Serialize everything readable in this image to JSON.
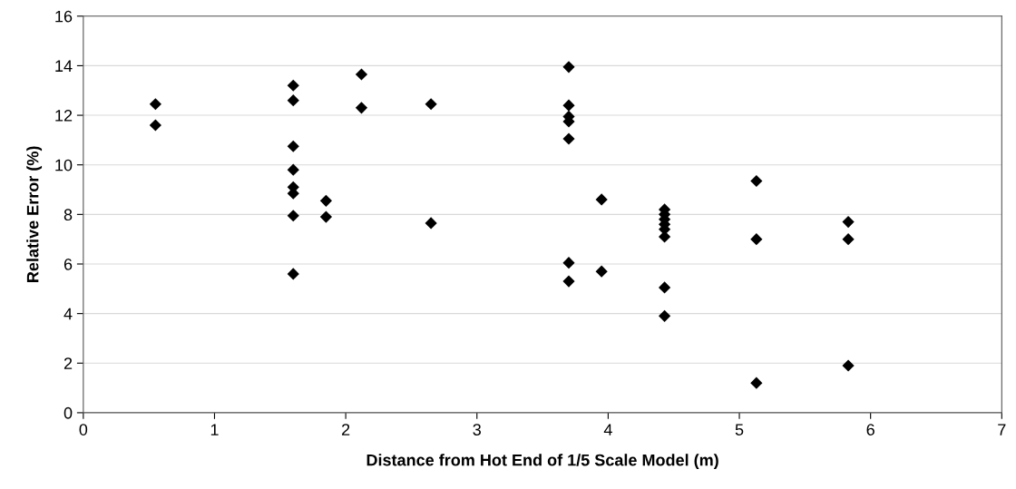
{
  "chart_data": {
    "type": "scatter",
    "xlabel": "Distance from Hot End of 1/5 Scale Model (m)",
    "ylabel": "Relative Error (%)",
    "x": [
      0.55,
      0.55,
      1.6,
      1.6,
      1.6,
      1.6,
      1.6,
      1.6,
      1.6,
      1.6,
      1.85,
      1.85,
      2.12,
      2.12,
      2.65,
      2.65,
      3.7,
      3.7,
      3.7,
      3.7,
      3.7,
      3.7,
      3.7,
      3.95,
      3.95,
      4.43,
      4.43,
      4.43,
      4.43,
      4.43,
      4.43,
      4.43,
      4.43,
      5.13,
      5.13,
      5.13,
      5.83,
      5.83,
      5.83
    ],
    "values": [
      12.45,
      11.6,
      13.2,
      12.6,
      10.75,
      9.8,
      9.1,
      8.85,
      7.95,
      5.6,
      8.55,
      7.9,
      13.65,
      12.3,
      12.45,
      7.65,
      13.95,
      12.4,
      11.95,
      11.75,
      11.05,
      6.05,
      5.3,
      8.6,
      5.7,
      8.2,
      8.0,
      7.8,
      7.6,
      7.4,
      7.1,
      5.05,
      3.9,
      9.35,
      7.0,
      1.2,
      7.7,
      7.0,
      1.9
    ],
    "color": "#000000",
    "marker": "diamond",
    "xlim": [
      0,
      7
    ],
    "xticks": [
      0,
      1,
      2,
      3,
      4,
      5,
      6,
      7
    ],
    "ylim": [
      0,
      16
    ],
    "yticks": [
      0,
      2,
      4,
      6,
      8,
      10,
      12,
      14,
      16
    ],
    "grid": "y"
  }
}
